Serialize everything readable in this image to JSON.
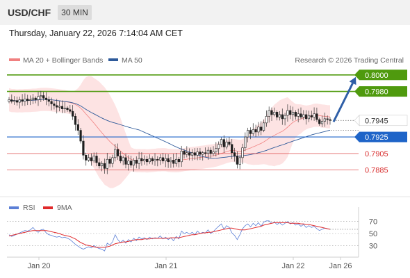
{
  "header": {
    "symbol": "USD/CHF",
    "timeframe": "30 MIN",
    "datetime": "Thursday, January 22, 2026 7:14:04 AM CET"
  },
  "legend": {
    "ma20_label": "MA 20 + Bollinger Bands",
    "ma50_label": "MA 50",
    "credit": "Research © 2026 Trading Central",
    "colors": {
      "ma20": "#f08080",
      "ma50": "#2e5a9a",
      "band": "#fde3e3"
    }
  },
  "rsi_legend": {
    "rsi_label": "RSI",
    "ma_label": "9MA",
    "colors": {
      "rsi": "#5b7fd6",
      "ma": "#e0292b"
    }
  },
  "chart_data": [
    {
      "type": "candlestick",
      "ylim": [
        0.7873,
        0.8004
      ],
      "x_labels": [
        "Jan 20",
        "Jan 21",
        "Jan 22",
        "Jan 26"
      ],
      "current_price": 0.7945,
      "levels": [
        {
          "value": 0.8,
          "label": "0.8000",
          "kind": "target",
          "color": "#4f9a0e"
        },
        {
          "value": 0.798,
          "label": "0.7980",
          "kind": "target",
          "color": "#4f9a0e"
        },
        {
          "value": 0.7945,
          "label": "0.7945",
          "kind": "last",
          "color": "#333333"
        },
        {
          "value": 0.7925,
          "label": "0.7925",
          "kind": "pivot",
          "color": "#1e64c8"
        },
        {
          "value": 0.7905,
          "label": "0.7905",
          "kind": "support",
          "color": "#d93030"
        },
        {
          "value": 0.7885,
          "label": "0.7885",
          "kind": "support",
          "color": "#d93030"
        }
      ],
      "closes": [
        0.797,
        0.7968,
        0.7969,
        0.7967,
        0.797,
        0.7968,
        0.7971,
        0.7969,
        0.797,
        0.7972,
        0.797,
        0.7974,
        0.7975,
        0.7972,
        0.797,
        0.7968,
        0.7965,
        0.7963,
        0.7961,
        0.7962,
        0.7959,
        0.796,
        0.7958,
        0.7956,
        0.795,
        0.794,
        0.7933,
        0.792,
        0.7903,
        0.7897,
        0.79,
        0.7896,
        0.7902,
        0.7894,
        0.789,
        0.7893,
        0.7887,
        0.7898,
        0.7893,
        0.79,
        0.791,
        0.7902,
        0.7896,
        0.79,
        0.7892,
        0.7896,
        0.7891,
        0.7897,
        0.7893,
        0.7899,
        0.7896,
        0.7898,
        0.7895,
        0.7899,
        0.7896,
        0.7898,
        0.7897,
        0.79,
        0.7896,
        0.7899,
        0.7895,
        0.7897,
        0.7893,
        0.7898,
        0.7895,
        0.7908,
        0.7904,
        0.7906,
        0.7903,
        0.7906,
        0.7903,
        0.7907,
        0.7904,
        0.7906,
        0.7905,
        0.7909,
        0.7905,
        0.7907,
        0.7911,
        0.7916,
        0.7922,
        0.7913,
        0.7919,
        0.7916,
        0.7906,
        0.7902,
        0.7892,
        0.79,
        0.7912,
        0.7925,
        0.7933,
        0.7929,
        0.7934,
        0.7931,
        0.7937,
        0.7933,
        0.7942,
        0.795,
        0.7957,
        0.7952,
        0.7955,
        0.7949,
        0.7952,
        0.7947,
        0.7951,
        0.7957,
        0.7952,
        0.7955,
        0.795,
        0.7953,
        0.7949,
        0.7952,
        0.7947,
        0.7951,
        0.7949,
        0.7953,
        0.7946,
        0.7941,
        0.7944,
        0.7947,
        0.7946,
        0.7945
      ],
      "indicators": [
        "MA 20 + Bollinger Bands",
        "MA 50"
      ]
    },
    {
      "type": "line",
      "ylim": [
        20,
        80
      ],
      "y_ticks": [
        70,
        50,
        30
      ],
      "series": [
        {
          "name": "RSI",
          "values": [
            48,
            45,
            47,
            49,
            51,
            53,
            55,
            54,
            56,
            60,
            55,
            52,
            56,
            57,
            51,
            48,
            47,
            45,
            44,
            45,
            43,
            44,
            42,
            40,
            36,
            32,
            29,
            26,
            24,
            26,
            28,
            26,
            30,
            27,
            25,
            24,
            21,
            34,
            31,
            36,
            48,
            40,
            35,
            39,
            34,
            40,
            36,
            42,
            38,
            44,
            41,
            43,
            40,
            44,
            41,
            43,
            42,
            46,
            41,
            44,
            40,
            43,
            38,
            45,
            41,
            54,
            50,
            52,
            49,
            52,
            48,
            54,
            50,
            52,
            51,
            56,
            50,
            53,
            58,
            62,
            66,
            57,
            63,
            60,
            51,
            47,
            40,
            48,
            58,
            63,
            66,
            61,
            67,
            63,
            68,
            62,
            69,
            71,
            71,
            67,
            69,
            65,
            68,
            64,
            67,
            70,
            66,
            68,
            64,
            66,
            62,
            65,
            60,
            63,
            60,
            62,
            58,
            55,
            57,
            59,
            58,
            57
          ]
        },
        {
          "name": "9MA",
          "values": [
            46,
            47,
            48,
            49,
            50,
            51,
            52,
            53,
            54,
            55,
            55,
            55,
            55,
            55,
            55,
            54,
            53,
            52,
            51,
            50,
            48,
            47,
            46,
            45,
            43,
            41,
            38,
            35,
            33,
            31,
            30,
            29,
            28,
            27,
            27,
            27,
            27,
            28,
            29,
            31,
            33,
            34,
            35,
            36,
            36,
            37,
            38,
            39,
            40,
            40,
            40,
            41,
            41,
            41,
            42,
            42,
            42,
            42,
            42,
            42,
            42,
            43,
            43,
            43,
            43,
            44,
            45,
            46,
            47,
            48,
            48,
            49,
            50,
            51,
            51,
            52,
            52,
            53,
            54,
            55,
            56,
            57,
            58,
            59,
            59,
            58,
            57,
            56,
            56,
            56,
            57,
            58,
            59,
            60,
            61,
            62,
            64,
            65,
            66,
            67,
            68,
            68,
            68,
            68,
            68,
            68,
            67,
            67,
            67,
            67,
            66,
            66,
            65,
            65,
            64,
            63,
            62,
            61,
            60,
            59,
            58,
            57
          ]
        }
      ]
    }
  ]
}
